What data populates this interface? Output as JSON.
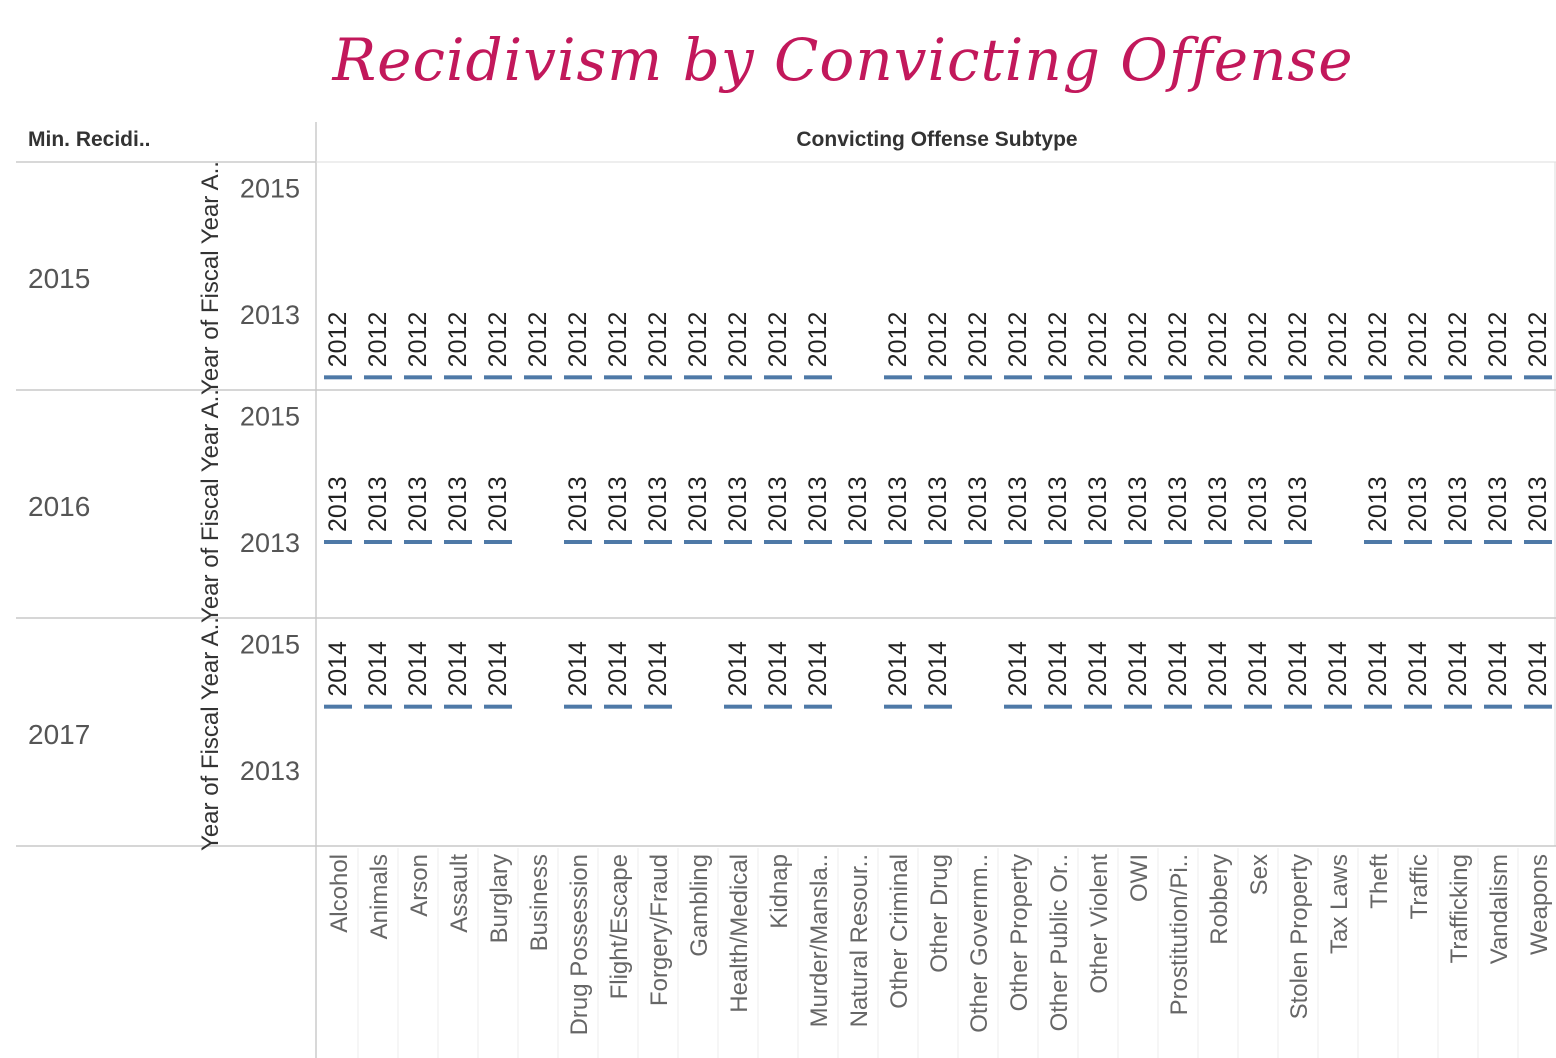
{
  "chart_data": {
    "type": "scatter",
    "title": "Recidivism by Convicting Offense",
    "row_header": "Min. Recidi..",
    "column_header": "Convicting Offense Subtype",
    "ylabel": "Year of Fiscal Year A..",
    "y_ticks": [
      "2015",
      "2013"
    ],
    "ylim": [
      2011.8,
      2015.4
    ],
    "mark_color": "#4e79a7",
    "categories": [
      "Alcohol",
      "Animals",
      "Arson",
      "Assault",
      "Burglary",
      "Business",
      "Drug Possession",
      "Flight/Escape",
      "Forgery/Fraud",
      "Gambling",
      "Health/Medical",
      "Kidnap",
      "Murder/Mansla..",
      "Natural Resour..",
      "Other Criminal",
      "Other Drug",
      "Other Governm..",
      "Other Property",
      "Other Public Or..",
      "Other Violent",
      "OWI",
      "Prostitution/Pi..",
      "Robbery",
      "Sex",
      "Stolen Property",
      "Tax Laws",
      "Theft",
      "Traffic",
      "Trafficking",
      "Vandalism",
      "Weapons"
    ],
    "rows": [
      {
        "name": "2015",
        "values": [
          2012,
          2012,
          2012,
          2012,
          2012,
          2012,
          2012,
          2012,
          2012,
          2012,
          2012,
          2012,
          2012,
          null,
          2012,
          2012,
          2012,
          2012,
          2012,
          2012,
          2012,
          2012,
          2012,
          2012,
          2012,
          2012,
          2012,
          2012,
          2012,
          2012,
          2012
        ]
      },
      {
        "name": "2016",
        "values": [
          2013,
          2013,
          2013,
          2013,
          2013,
          null,
          2013,
          2013,
          2013,
          2013,
          2013,
          2013,
          2013,
          2013,
          2013,
          2013,
          2013,
          2013,
          2013,
          2013,
          2013,
          2013,
          2013,
          2013,
          2013,
          null,
          2013,
          2013,
          2013,
          2013,
          2013
        ]
      },
      {
        "name": "2017",
        "values": [
          2014,
          2014,
          2014,
          2014,
          2014,
          null,
          2014,
          2014,
          2014,
          null,
          2014,
          2014,
          2014,
          null,
          2014,
          2014,
          null,
          2014,
          2014,
          2014,
          2014,
          2014,
          2014,
          2014,
          2014,
          2014,
          2014,
          2014,
          2014,
          2014,
          2014
        ]
      }
    ]
  }
}
